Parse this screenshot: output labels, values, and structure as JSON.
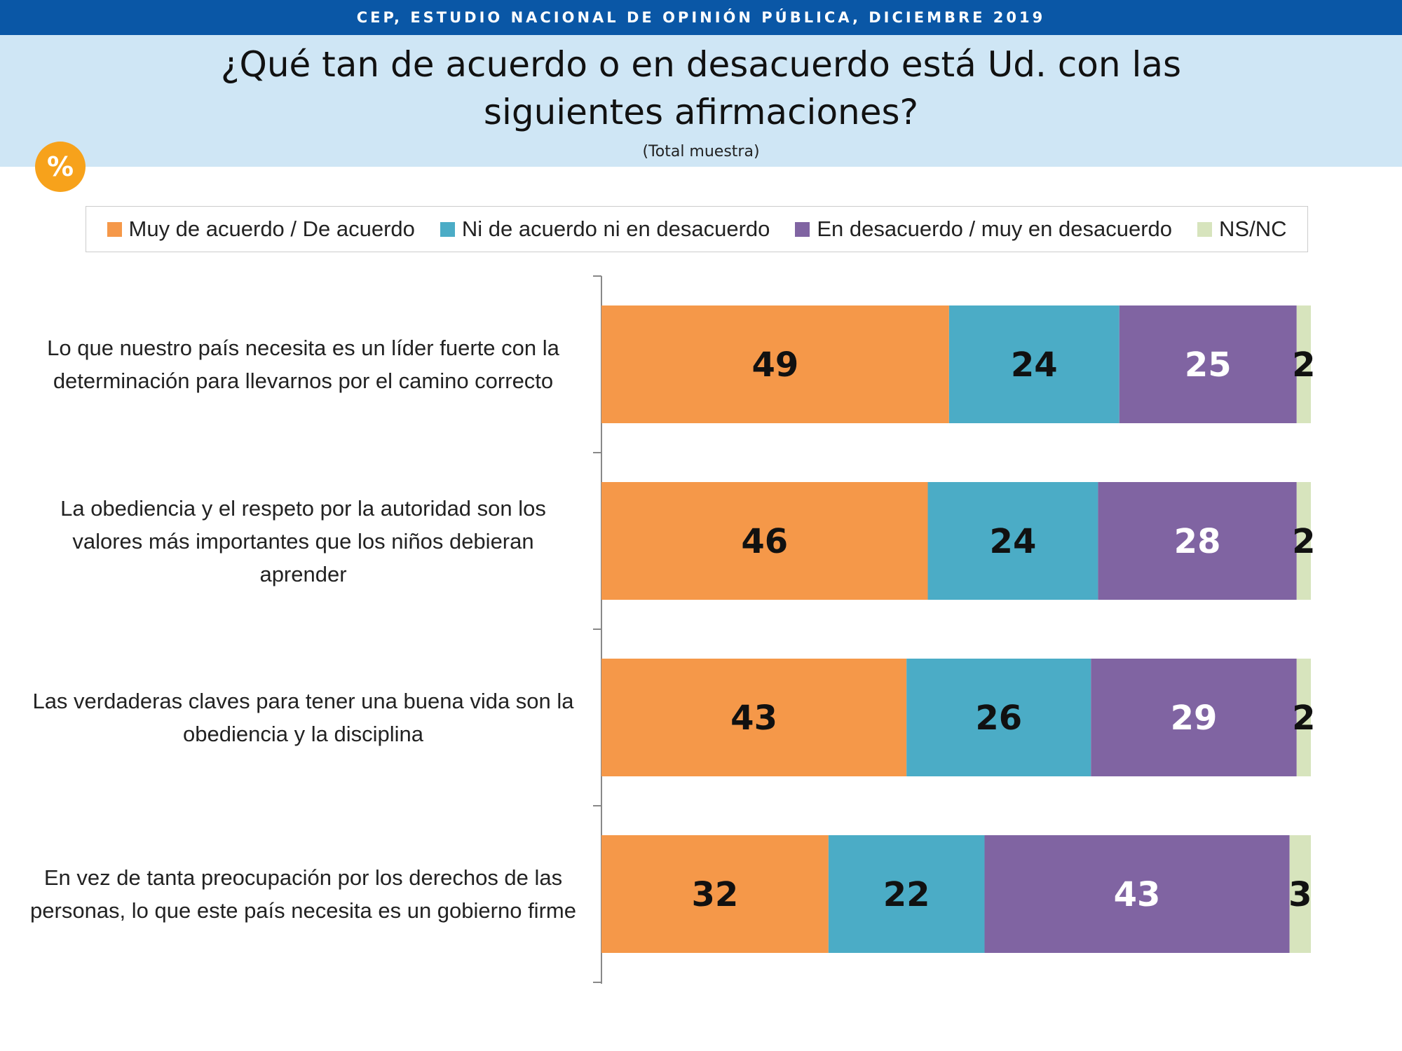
{
  "header": {
    "source": "CEP, ESTUDIO NACIONAL DE OPINIÓN PÚBLICA, DICIEMBRE 2019",
    "question": "¿Qué tan de acuerdo o en desacuerdo está Ud. con las siguientes afirmaciones?",
    "subtitle": "(Total muestra)",
    "badge": "%"
  },
  "colors": {
    "band": "#0a57a6",
    "panel": "#cfe6f5",
    "badge": "#f7a21b"
  },
  "chart_data": {
    "type": "bar",
    "orientation": "horizontal",
    "stacked": true,
    "categories": [
      "Lo que nuestro país necesita es un líder fuerte con la determinación para llevarnos por el camino correcto",
      "La obediencia y el respeto por la autoridad son los valores más importantes que los niños debieran aprender",
      "Las verdaderas claves para tener una buena vida son la obediencia y la disciplina",
      "En vez de tanta preocupación por los derechos de las personas, lo que este país necesita es un gobierno firme"
    ],
    "series": [
      {
        "name": "Muy de acuerdo / De acuerdo",
        "color": "#f59849",
        "label_color": "#111111",
        "values": [
          49,
          46,
          43,
          32
        ]
      },
      {
        "name": "Ni de acuerdo ni en desacuerdo",
        "color": "#4bacc6",
        "label_color": "#111111",
        "values": [
          24,
          24,
          26,
          22
        ]
      },
      {
        "name": "En desacuerdo / muy en desacuerdo",
        "color": "#8064a2",
        "label_color": "#ffffff",
        "values": [
          25,
          28,
          29,
          43
        ]
      },
      {
        "name": "NS/NC",
        "color": "#d7e4bd",
        "label_color": "#111111",
        "values": [
          2,
          2,
          2,
          3
        ]
      }
    ],
    "xlim": [
      0,
      100
    ],
    "grid": false,
    "legend_position": "top"
  }
}
